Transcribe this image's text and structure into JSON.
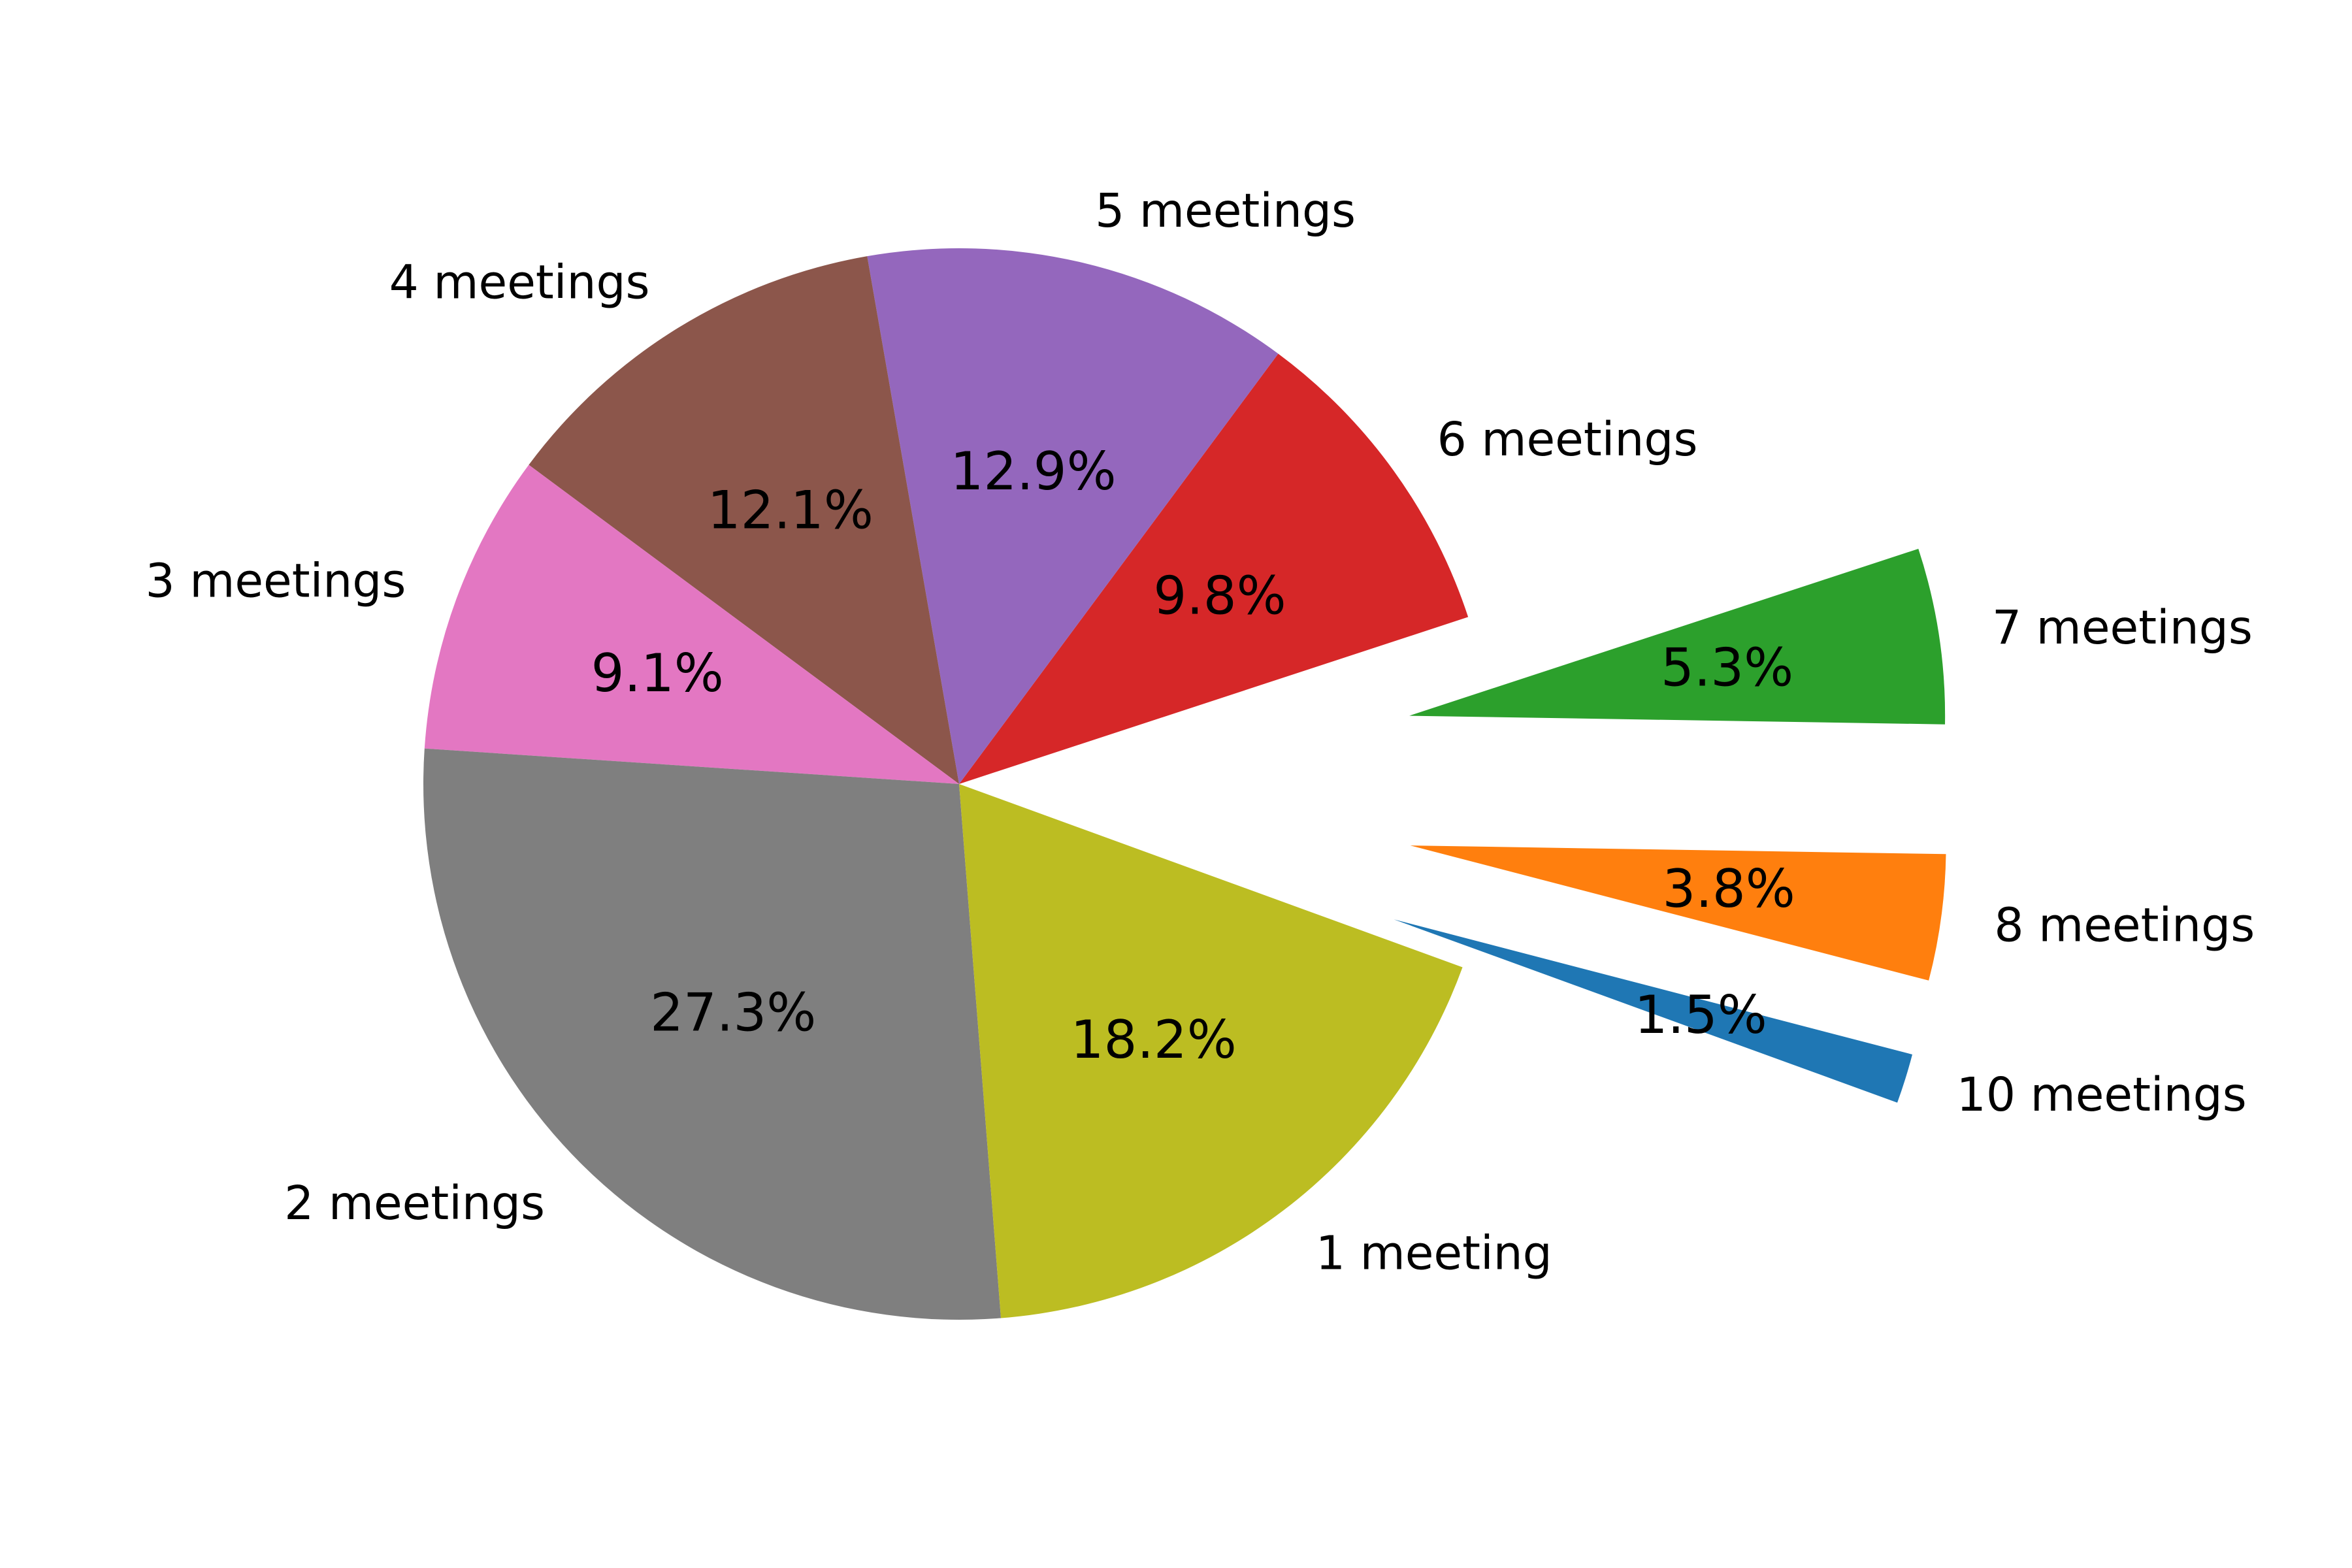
{
  "chart_data": {
    "type": "pie",
    "title": "",
    "autopct_format": "{pct}%",
    "slices": [
      {
        "label": "10 meetings",
        "percent": 1.5,
        "color": "#1f77b4",
        "exploded": true
      },
      {
        "label": "8 meetings",
        "percent": 3.8,
        "color": "#ff7f0e",
        "exploded": true
      },
      {
        "label": "7 meetings",
        "percent": 5.3,
        "color": "#2ca02c",
        "exploded": true
      },
      {
        "label": "6 meetings",
        "percent": 9.8,
        "color": "#d62728",
        "exploded": false
      },
      {
        "label": "5 meetings",
        "percent": 12.9,
        "color": "#9467bd",
        "exploded": false
      },
      {
        "label": "4 meetings",
        "percent": 12.1,
        "color": "#8c564b",
        "exploded": false
      },
      {
        "label": "3 meetings",
        "percent": 9.1,
        "color": "#e377c2",
        "exploded": false
      },
      {
        "label": "2 meetings",
        "percent": 27.3,
        "color": "#7f7f7f",
        "exploded": false
      },
      {
        "label": "1 meeting",
        "percent": 18.2,
        "color": "#bcbd22",
        "exploded": false
      }
    ],
    "start_angle_deg": -20,
    "direction": "counterclockwise",
    "legend": "none"
  }
}
